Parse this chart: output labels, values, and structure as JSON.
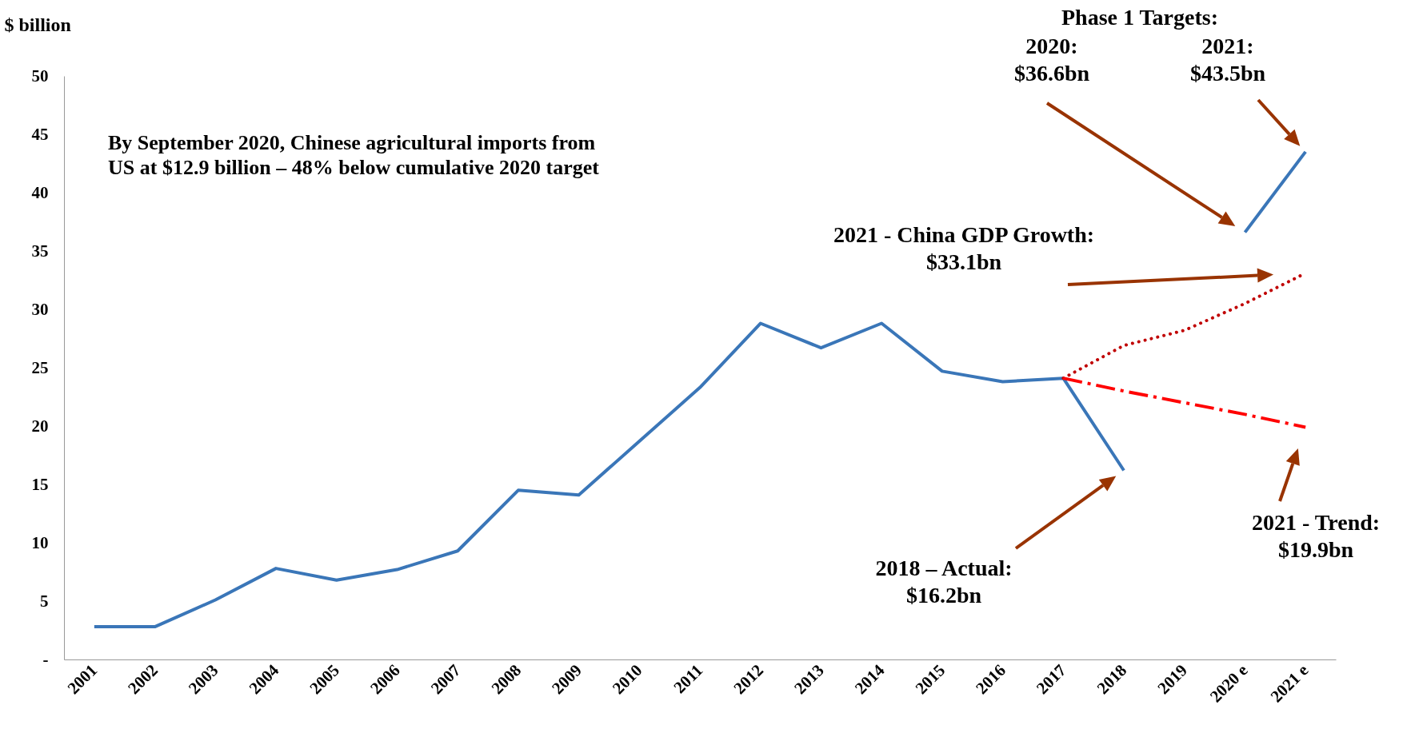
{
  "chart_data": {
    "type": "line",
    "ylabel": "$ billion",
    "categories": [
      "2001",
      "2002",
      "2003",
      "2004",
      "2005",
      "2006",
      "2007",
      "2008",
      "2009",
      "2010",
      "2011",
      "2012",
      "2013",
      "2014",
      "2015",
      "2016",
      "2017",
      "2018",
      "2019",
      "2020 e",
      "2021 e"
    ],
    "ylim": [
      0,
      50
    ],
    "yticks": [
      {
        "value": 0,
        "label": "-"
      },
      5,
      10,
      15,
      20,
      25,
      30,
      35,
      40,
      45,
      50
    ],
    "series": [
      {
        "color": "#3a76b8",
        "line_style": "solid",
        "values": [
          2.8,
          2.8,
          5.1,
          7.8,
          6.8,
          7.7,
          9.3,
          14.5,
          14.1,
          18.7,
          23.3,
          28.8,
          26.7,
          28.8,
          24.7,
          23.8,
          24.1,
          16.2,
          null,
          null,
          null
        ]
      },
      {
        "color": "#3a76b8",
        "line_style": "solid",
        "values": [
          null,
          null,
          null,
          null,
          null,
          null,
          null,
          null,
          null,
          null,
          null,
          null,
          null,
          null,
          null,
          null,
          null,
          null,
          null,
          36.6,
          43.5
        ]
      },
      {
        "color": "#c00000",
        "line_style": "dotted",
        "values": [
          null,
          null,
          null,
          null,
          null,
          null,
          null,
          null,
          null,
          null,
          null,
          null,
          null,
          null,
          null,
          null,
          24.1,
          26.9,
          28.2,
          30.5,
          33.1
        ]
      },
      {
        "color": "#ff0000",
        "line_style": "dashed",
        "values": [
          null,
          null,
          null,
          null,
          null,
          null,
          null,
          null,
          null,
          null,
          null,
          null,
          null,
          null,
          null,
          null,
          24.1,
          23.0,
          22.0,
          21.0,
          19.9
        ]
      }
    ],
    "annotations": [
      "By September 2020, Chinese agricultural imports from\nUS at $12.9 billion – 48% below cumulative 2020 target",
      "Phase 1 Targets:",
      "2020:\n$36.6bn",
      "2021:\n$43.5bn",
      "2021 - China GDP Growth:\n$33.1bn",
      "2018 – Actual:\n$16.2bn",
      "2021 - Trend:\n$19.9bn"
    ]
  }
}
